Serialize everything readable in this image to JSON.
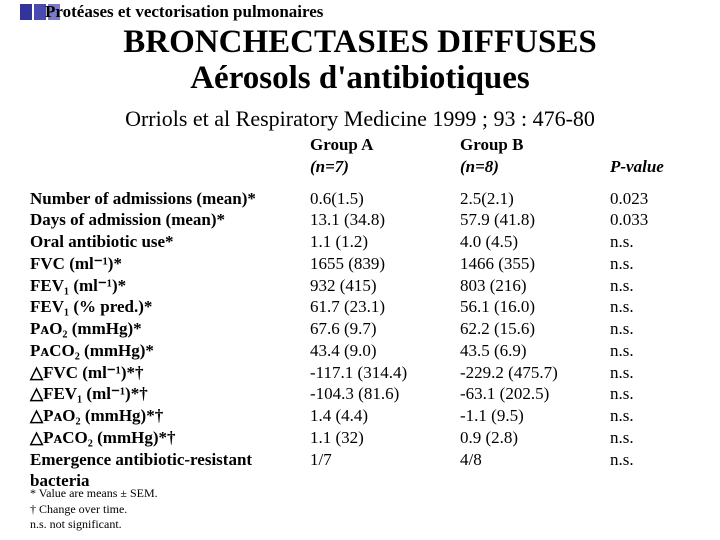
{
  "header": {
    "label": "Protéases et vectorisation pulmonaires",
    "bar_colors": [
      "#333399",
      "#4a4ab0",
      "#7a7acc"
    ]
  },
  "title_line1": "BRONCHECTASIES DIFFUSES",
  "title_line2": "Aérosols d'antibiotiques",
  "citation": "Orriols et al Respiratory Medicine 1999 ; 93 : 476-80",
  "table": {
    "col_headers": {
      "groupA": "Group A",
      "groupA_n": "(n=7)",
      "groupB": "Group B",
      "groupB_n": "(n=8)",
      "pvalue": "P-value"
    },
    "rows": [
      {
        "label": "Number of admissions (mean)*",
        "a": "0.6(1.5)",
        "b": "2.5(2.1)",
        "p": "0.023"
      },
      {
        "label": "Days of admission (mean)*",
        "a": "13.1 (34.8)",
        "b": "57.9 (41.8)",
        "p": "0.033"
      },
      {
        "label": "Oral antibiotic use*",
        "a": "1.1 (1.2)",
        "b": "4.0 (4.5)",
        "p": "n.s."
      },
      {
        "label": "FVC (ml⁻¹)*",
        "a": "1655 (839)",
        "b": "1466 (355)",
        "p": "n.s."
      },
      {
        "label": "FEV₁ (ml⁻¹)*",
        "a": "932 (415)",
        "b": "803 (216)",
        "p": "n.s."
      },
      {
        "label": "FEV₁ (% pred.)*",
        "a": "61.7 (23.1)",
        "b": "56.1 (16.0)",
        "p": "n.s."
      },
      {
        "label": "PᴀO₂ (mmHg)*",
        "a": "67.6 (9.7)",
        "b": "62.2 (15.6)",
        "p": "n.s."
      },
      {
        "label": "PᴀCO₂ (mmHg)*",
        "a": "43.4 (9.0)",
        "b": "43.5 (6.9)",
        "p": "n.s."
      },
      {
        "label": "△FVC (ml⁻¹)*†",
        "a": "-117.1 (314.4)",
        "b": "-229.2 (475.7)",
        "p": "n.s."
      },
      {
        "label": "△FEV₁ (ml⁻¹)*†",
        "a": "-104.3 (81.6)",
        "b": "-63.1 (202.5)",
        "p": "n.s."
      },
      {
        "label": "△PᴀO₂ (mmHg)*†",
        "a": "1.4 (4.4)",
        "b": "-1.1 (9.5)",
        "p": "n.s."
      },
      {
        "label": "△PᴀCO₂ (mmHg)*†",
        "a": "1.1 (32)",
        "b": "0.9 (2.8)",
        "p": "n.s."
      },
      {
        "label": "Emergence antibiotic-resistant bacteria",
        "a": "1/7",
        "b": "4/8",
        "p": "n.s."
      }
    ]
  },
  "footnotes": [
    "* Value are means ± SEM.",
    "† Change over time.",
    "n.s. not significant."
  ],
  "styling": {
    "background_color": "#ffffff",
    "title_fontsize": 33,
    "body_fontsize": 17,
    "footnote_fontsize": 12,
    "font_family": "Times New Roman"
  }
}
